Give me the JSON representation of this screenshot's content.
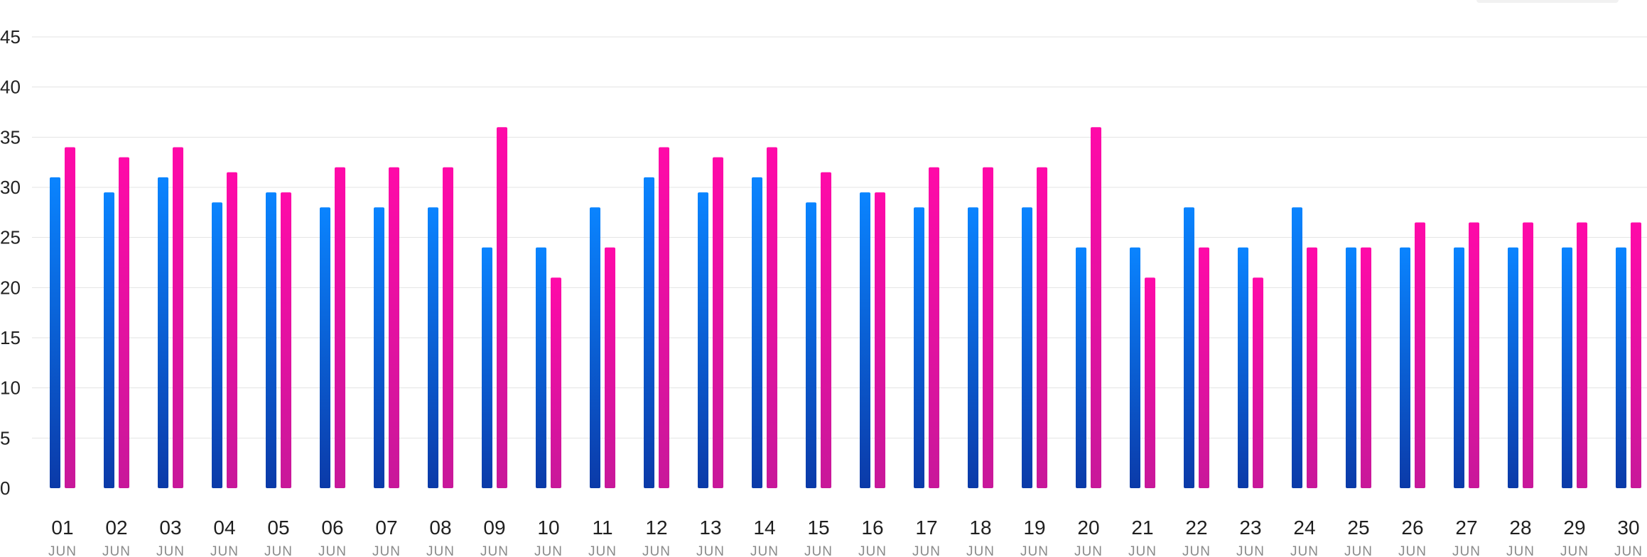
{
  "chart_data": {
    "type": "bar",
    "title": "",
    "xlabel": "",
    "ylabel": "",
    "ylim": [
      0,
      45
    ],
    "yticks": [
      0,
      5,
      10,
      15,
      20,
      25,
      30,
      35,
      40,
      45
    ],
    "grid": true,
    "categories": [
      "01",
      "02",
      "03",
      "04",
      "05",
      "06",
      "07",
      "08",
      "09",
      "10",
      "11",
      "12",
      "13",
      "14",
      "15",
      "16",
      "17",
      "18",
      "19",
      "20",
      "21",
      "22",
      "23",
      "24",
      "25",
      "26",
      "27",
      "28",
      "29",
      "30"
    ],
    "category_sublabel": "JUN",
    "series": [
      {
        "color_top": "#0a84ff",
        "color_bottom": "#0b3aa8",
        "values": [
          31,
          29.5,
          31,
          28.5,
          29.5,
          28,
          28,
          28,
          24,
          24,
          28,
          31,
          29.5,
          31,
          28.5,
          29.5,
          28,
          28,
          28,
          24,
          24,
          28,
          24,
          28,
          24,
          24,
          24,
          24,
          24,
          24
        ]
      },
      {
        "color_top": "#ff0aa8",
        "color_bottom": "#c8189a",
        "values": [
          34,
          33,
          34,
          31.5,
          29.5,
          32,
          32,
          32,
          36,
          21,
          24,
          34,
          33,
          34,
          31.5,
          29.5,
          32,
          32,
          32,
          36,
          21,
          24,
          21,
          24,
          24,
          26.5,
          26.5,
          26.5,
          26.5,
          26.5
        ]
      }
    ]
  }
}
